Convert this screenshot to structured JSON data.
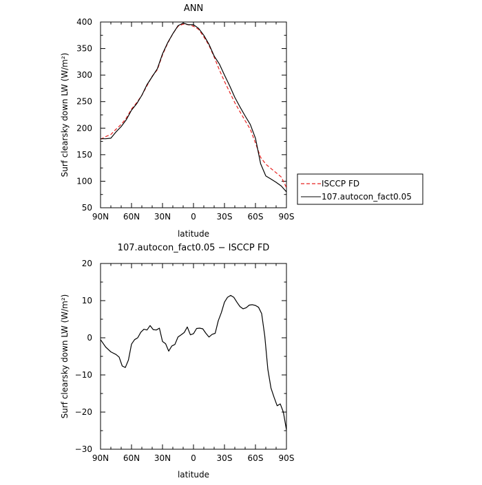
{
  "chart_data": [
    {
      "type": "line",
      "title": "ANN",
      "xlabel": "latitude",
      "ylabel": "Surf clearsky down LW (W/m²)",
      "xlim": [
        -90,
        90
      ],
      "ylim": [
        50,
        400
      ],
      "xticks": [
        -90,
        -60,
        -30,
        0,
        30,
        60,
        90
      ],
      "xticklabels": [
        "90N",
        "60N",
        "30N",
        "0",
        "30S",
        "60S",
        "90S"
      ],
      "yticks": [
        50,
        100,
        150,
        200,
        250,
        300,
        350,
        400
      ],
      "yticklabels": [
        "50",
        "100",
        "150",
        "200",
        "250",
        "300",
        "350",
        "400"
      ],
      "legend_position": "outside-right",
      "series": [
        {
          "name": "ISCCP FD",
          "color": "#e8201e",
          "dash": "dashed",
          "x": [
            -90,
            -85,
            -80,
            -75,
            -70,
            -65,
            -60,
            -55,
            -50,
            -45,
            -40,
            -35,
            -30,
            -25,
            -20,
            -15,
            -10,
            -5,
            0,
            5,
            10,
            15,
            20,
            25,
            30,
            35,
            40,
            45,
            50,
            55,
            60,
            65,
            70,
            75,
            80,
            85,
            90
          ],
          "y": [
            179,
            184,
            188,
            198,
            207,
            219,
            236,
            248,
            262,
            280,
            298,
            310,
            338,
            360,
            378,
            392,
            396,
            395,
            392,
            386,
            372,
            356,
            334,
            310,
            288,
            268,
            248,
            231,
            214,
            198,
            172,
            145,
            132,
            124,
            116,
            108,
            88
          ]
        },
        {
          "name": "107.autocon_fact0.05",
          "color": "#000000",
          "dash": "solid",
          "x": [
            -90,
            -85,
            -80,
            -75,
            -70,
            -65,
            -60,
            -55,
            -50,
            -45,
            -40,
            -35,
            -30,
            -25,
            -20,
            -15,
            -10,
            -5,
            0,
            5,
            10,
            15,
            20,
            25,
            30,
            35,
            40,
            45,
            50,
            55,
            60,
            65,
            70,
            75,
            80,
            85,
            90
          ],
          "y": [
            180,
            180,
            181,
            193,
            203,
            216,
            234,
            246,
            262,
            282,
            297,
            312,
            340,
            361,
            378,
            393,
            398,
            395,
            395,
            388,
            375,
            358,
            336,
            321,
            300,
            280,
            258,
            240,
            223,
            207,
            181,
            133,
            110,
            104,
            98,
            91,
            80
          ]
        }
      ]
    },
    {
      "type": "line",
      "title": "107.autocon_fact0.05 − ISCCP FD",
      "xlabel": "latitude",
      "ylabel": "Surf clearsky down LW (W/m²)",
      "xlim": [
        -90,
        90
      ],
      "ylim": [
        -30,
        20
      ],
      "xticks": [
        -90,
        -60,
        -30,
        0,
        30,
        60,
        90
      ],
      "xticklabels": [
        "90N",
        "60N",
        "30N",
        "0",
        "30S",
        "60S",
        "90S"
      ],
      "yticks": [
        -30,
        -20,
        -10,
        0,
        10,
        20
      ],
      "yticklabels": [
        "−30",
        "−20",
        "−10",
        "0",
        "10",
        "20"
      ],
      "series": [
        {
          "color": "#000000",
          "dash": "solid",
          "x": [
            -90,
            -85,
            -80,
            -75,
            -72,
            -69,
            -66,
            -63,
            -60,
            -57,
            -54,
            -51,
            -48,
            -45,
            -42,
            -39,
            -36,
            -33,
            -30,
            -27,
            -24,
            -21,
            -18,
            -15,
            -12,
            -9,
            -6,
            -3,
            0,
            3,
            6,
            9,
            12,
            15,
            18,
            21,
            24,
            27,
            30,
            33,
            36,
            39,
            42,
            45,
            48,
            51,
            54,
            57,
            60,
            63,
            66,
            69,
            72,
            75,
            78,
            81,
            84,
            87,
            90
          ],
          "y": [
            -0.5,
            -2.5,
            -3.8,
            -4.5,
            -5.2,
            -7.6,
            -8,
            -6,
            -1.7,
            -0.5,
            0,
            1.5,
            2.3,
            2.1,
            3.3,
            2.2,
            2.1,
            2.6,
            -1,
            -1.6,
            -3.6,
            -2.2,
            -1.8,
            0.2,
            0.8,
            1.4,
            2.9,
            0.8,
            1.1,
            2.5,
            2.6,
            2.4,
            1.2,
            0.2,
            0.9,
            1.2,
            4.6,
            6.8,
            9.6,
            10.9,
            11.4,
            10.9,
            9.6,
            8.4,
            7.8,
            8.1,
            8.8,
            8.9,
            8.7,
            8.2,
            6.5,
            0.5,
            -8.5,
            -13.5,
            -16,
            -18.3,
            -17.8,
            -20,
            -24.8
          ]
        }
      ]
    }
  ]
}
